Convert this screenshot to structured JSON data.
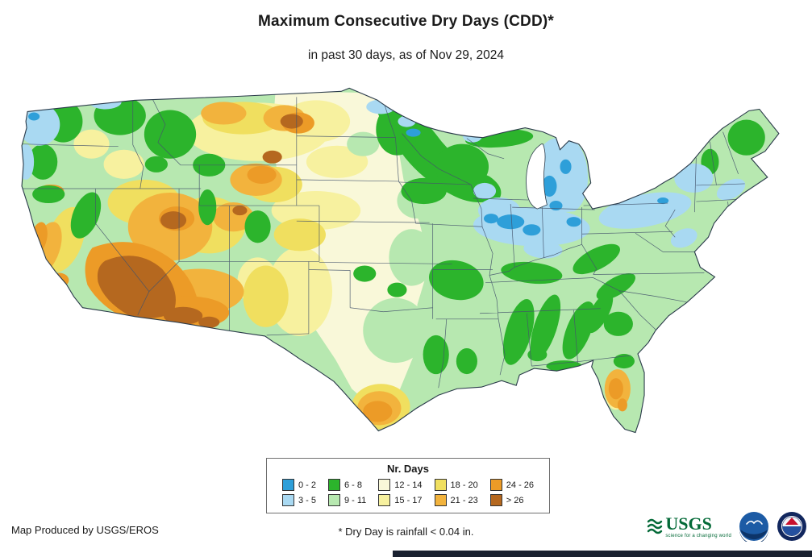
{
  "header": {
    "title": "Maximum Consecutive Dry Days (CDD)*",
    "subtitle": "in past 30 days, as of Nov 29, 2024"
  },
  "legend": {
    "title": "Nr. Days",
    "items": [
      {
        "label": "0 - 2",
        "color": "#2e9fd9"
      },
      {
        "label": "3 - 5",
        "color": "#a9d9f2"
      },
      {
        "label": "6 - 8",
        "color": "#2cb42c"
      },
      {
        "label": "9 - 11",
        "color": "#b7e8b0"
      },
      {
        "label": "12 - 14",
        "color": "#f9f8d9"
      },
      {
        "label": "15 - 17",
        "color": "#f7f19f"
      },
      {
        "label": "18 - 20",
        "color": "#f0df5f"
      },
      {
        "label": "21 - 23",
        "color": "#f2b33d"
      },
      {
        "label": "24 - 26",
        "color": "#ec9b27"
      },
      {
        "label": "> 26",
        "color": "#b5681f"
      }
    ]
  },
  "footer": {
    "credit": "Map Produced by USGS/EROS",
    "footnote": "* Dry Day is rainfall < 0.04 in."
  },
  "logos": {
    "usgs": {
      "word": "USGS",
      "tagline": "science for a changing world"
    }
  }
}
